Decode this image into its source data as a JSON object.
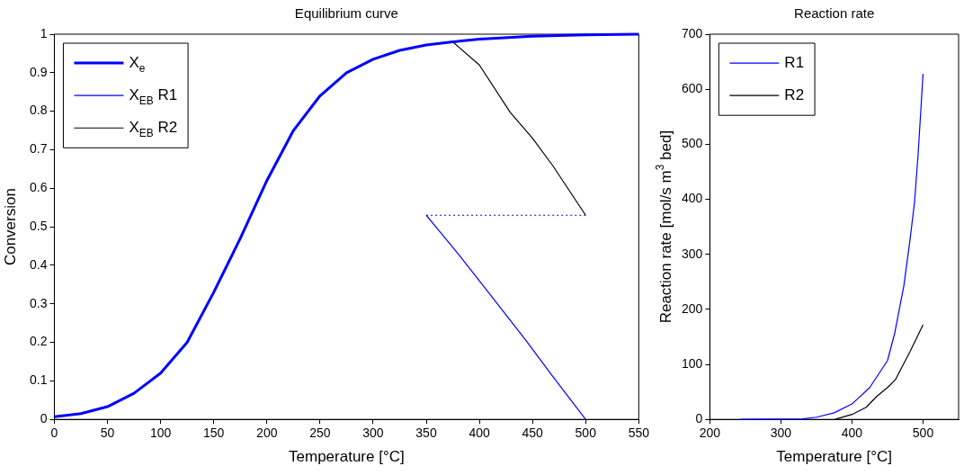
{
  "chart_data": [
    {
      "type": "line",
      "title": "Equilibrium curve",
      "xlabel": "Temperature [°C]",
      "ylabel": "Conversion",
      "xlim": [
        0,
        550
      ],
      "xticks": [
        0,
        50,
        100,
        150,
        200,
        250,
        300,
        350,
        400,
        450,
        500,
        550
      ],
      "ylim": [
        0,
        1
      ],
      "yticks": [
        0,
        0.1,
        0.2,
        0.3,
        0.4,
        0.5,
        0.6,
        0.7,
        0.8,
        0.9,
        1
      ],
      "grid": false,
      "legend": "top left",
      "marker": "none",
      "series": [
        {
          "name": "X$_{e}$",
          "color": "#0000ff",
          "x": [
            0,
            25,
            50,
            75,
            100,
            125,
            150,
            175,
            200,
            225,
            250,
            275,
            300,
            325,
            350,
            375,
            400,
            450,
            500,
            550
          ],
          "values": [
            0.007,
            0.015,
            0.033,
            0.068,
            0.12,
            0.2,
            0.33,
            0.47,
            0.62,
            0.75,
            0.84,
            0.9,
            0.935,
            0.958,
            0.972,
            0.98,
            0.987,
            0.995,
            0.998,
            1.0
          ]
        },
        {
          "name": "X$_{EB}$ R1",
          "color": "#0000ff",
          "x": [
            350,
            380,
            400,
            443,
            470,
            500
          ],
          "values": [
            0.53,
            0.43,
            0.36,
            0.208,
            0.108,
            0
          ]
        },
        {
          "name": "X$_{EB}$ R2",
          "color": "#000000",
          "x": [
            375,
            400,
            429,
            450,
            469,
            500
          ],
          "values": [
            0.98,
            0.92,
            0.797,
            0.73,
            0.659,
            0.53
          ]
        },
        {
          "color": "#0000ff",
          "line_style": "dotted",
          "x": [
            350,
            500
          ],
          "values": [
            0.53,
            0.53
          ]
        }
      ]
    },
    {
      "type": "line",
      "title": "Reaction rate",
      "xlabel": "Temperature [°C]",
      "ylabel": "Reaction rate [mol/s m$^{3}$ bed]",
      "xlim": [
        200,
        550
      ],
      "xticks": [
        200,
        300,
        400,
        500
      ],
      "ylim": [
        0,
        700
      ],
      "yticks": [
        0,
        100,
        200,
        300,
        400,
        500,
        600,
        700
      ],
      "grid": false,
      "legend": "top left",
      "marker": "none",
      "series": [
        {
          "name": "R1",
          "color": "#0000ff",
          "x": [
            243,
            330,
            350,
            375,
            400,
            425,
            450,
            460,
            473,
            482,
            488,
            493,
            500
          ],
          "values": [
            0,
            1,
            4,
            12,
            28,
            58,
            107,
            156,
            243,
            330,
            395,
            481,
            628
          ]
        },
        {
          "name": "R2",
          "color": "#000000",
          "x": [
            376,
            400,
            420,
            435,
            450,
            461,
            482,
            500
          ],
          "values": [
            0,
            9,
            22,
            42,
            58,
            72,
            124,
            172
          ]
        }
      ]
    }
  ]
}
